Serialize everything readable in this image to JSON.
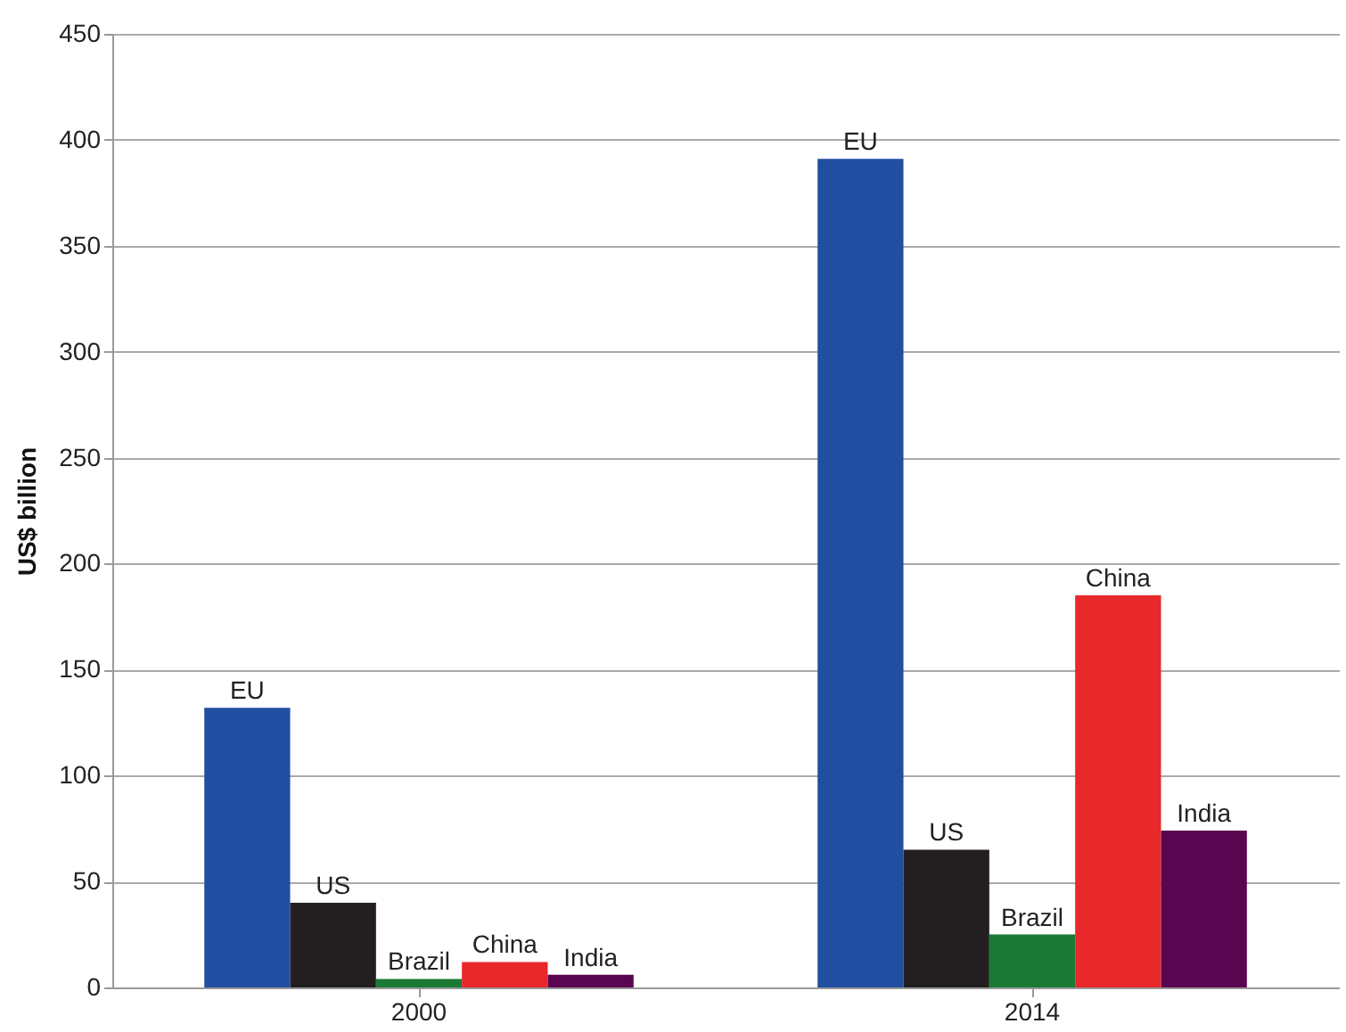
{
  "chart_data": {
    "type": "bar",
    "ylabel": "US$ billion",
    "categories": [
      "2000",
      "2014"
    ],
    "series": [
      {
        "name": "EU",
        "color": "#214ea0",
        "values": [
          132,
          391
        ]
      },
      {
        "name": "US",
        "color": "#231f20",
        "values": [
          40,
          65
        ]
      },
      {
        "name": "Brazil",
        "color": "#1a7a35",
        "values": [
          4,
          25
        ]
      },
      {
        "name": "China",
        "color": "#e8282b",
        "values": [
          12,
          185
        ]
      },
      {
        "name": "India",
        "color": "#5a0550",
        "values": [
          6,
          74
        ]
      }
    ],
    "ylim": [
      0,
      450
    ],
    "yticks": [
      0,
      50,
      100,
      150,
      200,
      250,
      300,
      350,
      400,
      450
    ],
    "grid": "y",
    "legend": false
  }
}
